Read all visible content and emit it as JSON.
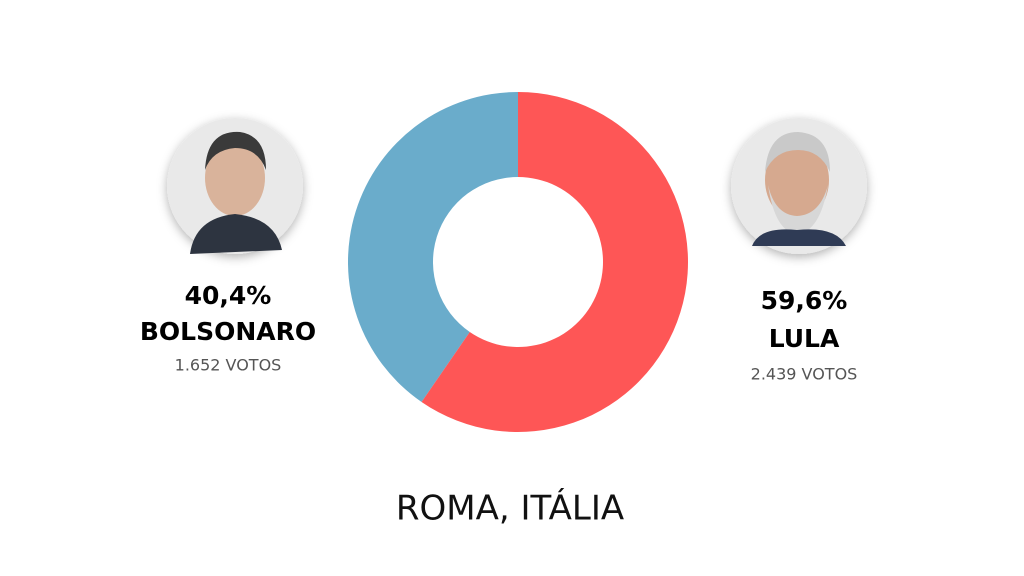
{
  "chart_data": {
    "type": "donut",
    "title": "ROMA, ITÁLIA",
    "categories": [
      "BOLSONARO",
      "LULA"
    ],
    "values": [
      40.4,
      59.6
    ],
    "value_labels": [
      "40,4%",
      "59,6%"
    ],
    "vote_labels": [
      "1.652 VOTOS",
      "2.439 VOTOS"
    ],
    "colors": [
      "#6aaccb",
      "#fe5656"
    ]
  }
}
